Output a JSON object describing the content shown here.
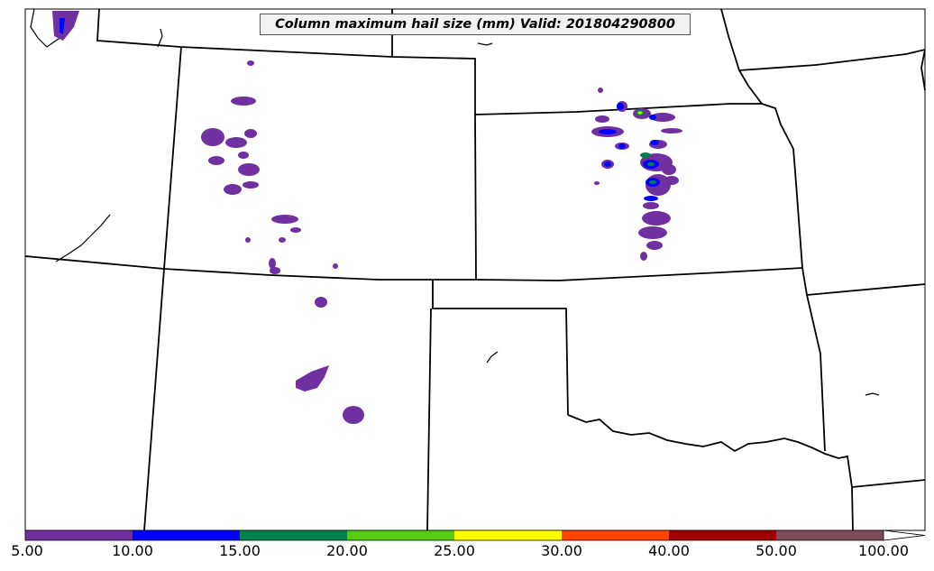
{
  "title": "Column maximum hail size (mm) Valid: 201804290800",
  "colorbar": {
    "bins": [
      {
        "from": "5.00",
        "to": "10.00",
        "color": "#7030a0"
      },
      {
        "from": "10.00",
        "to": "15.00",
        "color": "#0000ff"
      },
      {
        "from": "15.00",
        "to": "20.00",
        "color": "#00804a"
      },
      {
        "from": "20.00",
        "to": "25.00",
        "color": "#55cc11"
      },
      {
        "from": "25.00",
        "to": "30.00",
        "color": "#ffff00"
      },
      {
        "from": "30.00",
        "to": "40.00",
        "color": "#ff4400"
      },
      {
        "from": "40.00",
        "to": "50.00",
        "color": "#a00000"
      },
      {
        "from": "50.00",
        "to": "100.00",
        "color": "#7f4a5a"
      }
    ],
    "extend_max_color": "#ffffff",
    "tick_labels": [
      "5.00",
      "10.00",
      "15.00",
      "20.00",
      "25.00",
      "30.00",
      "40.00",
      "50.00",
      "100.00"
    ]
  },
  "legend_levels_mm": [
    5,
    10,
    15,
    20,
    25,
    30,
    40,
    50,
    100
  ],
  "region": "Central US plains (states boundaries), hail swaths over Colorado, western Nebraska/Kansas line and New Mexico"
}
